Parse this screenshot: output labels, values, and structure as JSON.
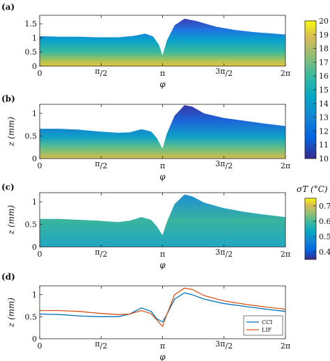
{
  "chart_data": [
    {
      "panel": "(a)",
      "type": "heatmap",
      "xlabel": "φ",
      "ylabel": "",
      "xticks": [
        "0",
        "π/2",
        "π",
        "3π/2",
        "2π"
      ],
      "yticks": [
        "0",
        "0.5",
        "1",
        "1.5"
      ],
      "ylim": [
        0,
        1.8
      ],
      "surface": {
        "x": [
          0,
          0.5,
          1.0,
          1.5,
          2.0,
          2.4,
          2.7,
          2.9,
          3.05,
          3.14,
          3.25,
          3.45,
          3.7,
          4.0,
          4.5,
          5.0,
          5.5,
          6.0,
          6.28
        ],
        "top": [
          1.06,
          1.04,
          1.04,
          1.02,
          1.02,
          1.07,
          1.15,
          1.05,
          0.75,
          0.38,
          0.9,
          1.45,
          1.68,
          1.6,
          1.4,
          1.28,
          1.2,
          1.15,
          1.12
        ]
      },
      "colorbar": {
        "ticks": [
          10,
          11,
          12,
          13,
          14,
          15,
          16,
          17,
          18,
          19,
          20
        ],
        "label": ""
      }
    },
    {
      "panel": "(b)",
      "type": "heatmap",
      "xlabel": "φ",
      "ylabel": "z (mm)",
      "xticks": [
        "0",
        "π/2",
        "π",
        "3π/2",
        "2π"
      ],
      "yticks": [
        "0",
        "0.5",
        "1"
      ],
      "ylim": [
        0,
        1.2
      ],
      "surface": {
        "x": [
          0,
          0.5,
          1.0,
          1.5,
          2.0,
          2.3,
          2.6,
          2.85,
          3.0,
          3.14,
          3.25,
          3.45,
          3.7,
          3.9,
          4.2,
          4.7,
          5.2,
          5.7,
          6.28
        ],
        "top": [
          0.66,
          0.66,
          0.64,
          0.6,
          0.57,
          0.58,
          0.65,
          0.6,
          0.45,
          0.22,
          0.55,
          0.95,
          1.18,
          1.15,
          1.0,
          0.9,
          0.84,
          0.78,
          0.72
        ]
      }
    },
    {
      "panel": "(c)",
      "type": "heatmap",
      "xlabel": "φ",
      "ylabel": "z (mm)",
      "xticks": [
        "0",
        "π/2",
        "π",
        "3π/2",
        "2π"
      ],
      "yticks": [
        "0",
        "0.5",
        "1"
      ],
      "ylim": [
        0,
        1.2
      ],
      "surface": {
        "x": [
          0,
          0.5,
          1.0,
          1.5,
          2.0,
          2.3,
          2.6,
          2.85,
          3.0,
          3.14,
          3.25,
          3.45,
          3.7,
          3.9,
          4.2,
          4.7,
          5.2,
          5.7,
          6.28
        ],
        "top": [
          0.62,
          0.62,
          0.6,
          0.58,
          0.55,
          0.58,
          0.66,
          0.6,
          0.45,
          0.26,
          0.55,
          0.95,
          1.16,
          1.12,
          0.98,
          0.86,
          0.78,
          0.72,
          0.66
        ]
      },
      "colorbar": {
        "ticks": [
          0.4,
          0.5,
          0.6,
          0.7
        ],
        "label": "σT (°C)"
      }
    },
    {
      "panel": "(d)",
      "type": "line",
      "xlabel": "φ",
      "ylabel": "z (mm)",
      "xticks": [
        "0",
        "π/2",
        "π",
        "3π/2",
        "2π"
      ],
      "yticks": [
        "0",
        "0.5",
        "1"
      ],
      "ylim": [
        0,
        1.2
      ],
      "legend": "bottom-right",
      "x": [
        0,
        0.5,
        1.0,
        1.5,
        2.0,
        2.3,
        2.6,
        2.85,
        3.0,
        3.14,
        3.25,
        3.45,
        3.7,
        3.9,
        4.2,
        4.7,
        5.2,
        5.7,
        6.28
      ],
      "series": [
        {
          "name": "CCI",
          "color": "#0072BD",
          "values": [
            0.56,
            0.55,
            0.52,
            0.5,
            0.5,
            0.56,
            0.7,
            0.62,
            0.45,
            0.38,
            0.55,
            0.9,
            1.04,
            1.0,
            0.9,
            0.8,
            0.74,
            0.68,
            0.62
          ]
        },
        {
          "name": "LIF",
          "color": "#D95319",
          "values": [
            0.64,
            0.64,
            0.62,
            0.58,
            0.55,
            0.56,
            0.64,
            0.57,
            0.42,
            0.28,
            0.55,
            1.0,
            1.15,
            1.12,
            0.98,
            0.86,
            0.79,
            0.73,
            0.67
          ]
        }
      ]
    }
  ]
}
